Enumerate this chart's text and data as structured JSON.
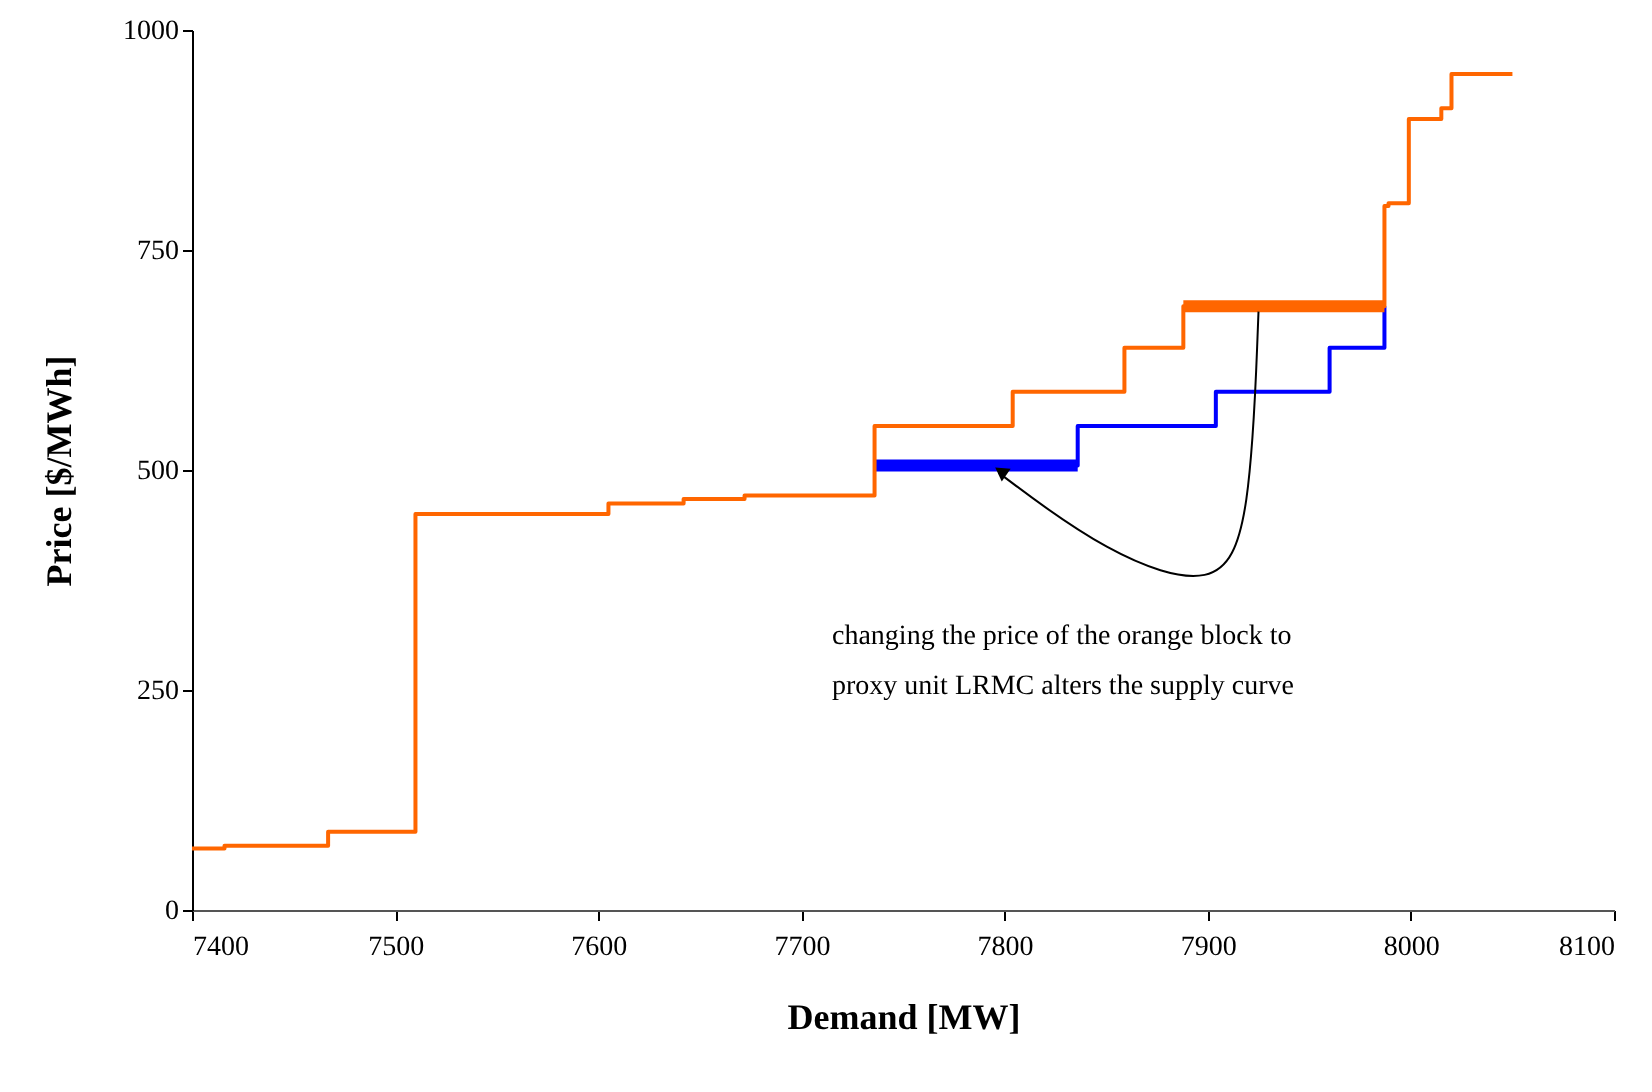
{
  "chart_data": {
    "type": "step",
    "xlabel": "Demand [MW]",
    "ylabel": "Price [$/MWh]",
    "xlim": [
      7400,
      8100
    ],
    "xticks": [
      7400,
      7500,
      7600,
      7700,
      7800,
      7900,
      8000,
      8100
    ],
    "ylim": [
      0,
      1000
    ],
    "yticks": [
      0,
      250,
      500,
      750,
      1000
    ],
    "grid": false,
    "series": [
      {
        "color": "#0000ff",
        "x": [
          7736,
          7836,
          7904,
          7960,
          7987
        ],
        "values": [
          505,
          550,
          589,
          639,
          686
        ]
      },
      {
        "color": "#0000ff",
        "x": [
          7736,
          7836
        ],
        "values": [
          505,
          505
        ]
      },
      {
        "color": "#ff6600",
        "x": [
          7400,
          7416,
          7467,
          7510,
          7605,
          7642,
          7672,
          7736,
          7804,
          7859,
          7888,
          7987,
          7989,
          7999,
          8015,
          8020,
          8050
        ],
        "values": [
          70,
          73,
          89,
          450,
          462,
          467,
          471,
          550,
          589,
          639,
          686,
          800,
          803,
          899,
          911,
          950,
          950
        ]
      },
      {
        "color": "#ff6600",
        "x": [
          7888,
          7987
        ],
        "values": [
          686,
          686
        ]
      }
    ],
    "annotations": [
      "changing the price of the orange block to\nproxy unit LRMC alters the supply curve"
    ]
  }
}
